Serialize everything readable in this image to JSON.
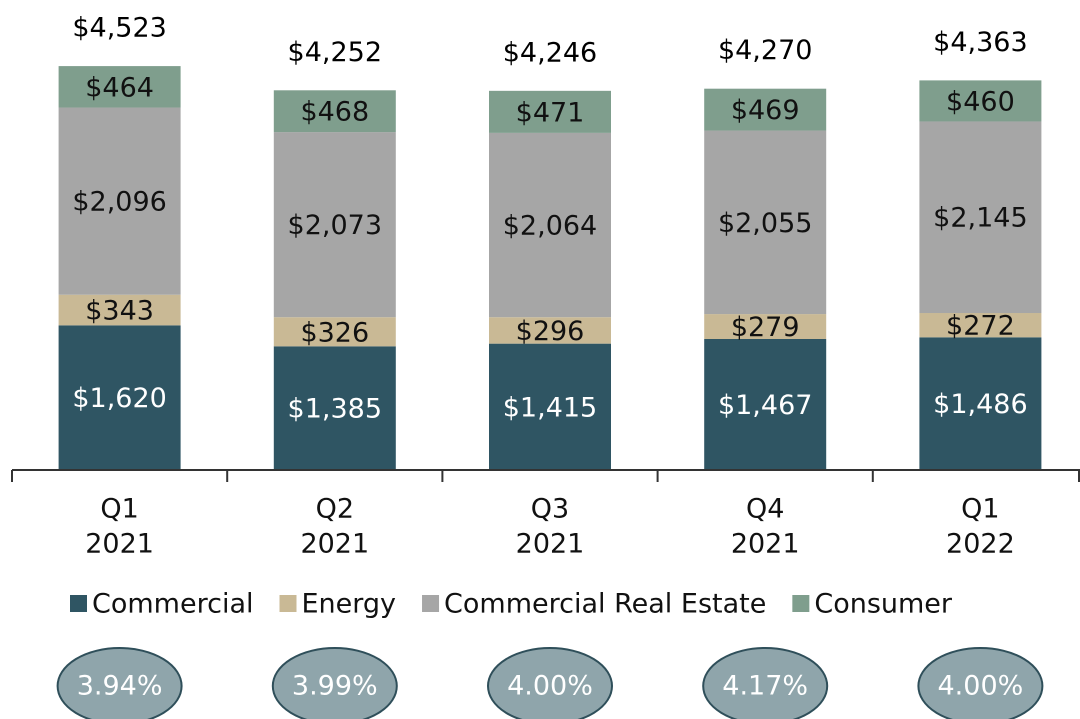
{
  "chart_data": {
    "type": "stacked-bar",
    "categories": [
      [
        "Q1",
        "2021"
      ],
      [
        "Q2",
        "2021"
      ],
      [
        "Q3",
        "2021"
      ],
      [
        "Q4",
        "2021"
      ],
      [
        "Q1",
        "2022"
      ]
    ],
    "series": [
      {
        "name": "Commercial",
        "color": "#2f5563",
        "label_color": "#ffffff",
        "values": [
          1620,
          1385,
          1415,
          1467,
          1486
        ],
        "value_labels": [
          "$1,620",
          "$1,385",
          "$1,415",
          "$1,467",
          "$1,486"
        ]
      },
      {
        "name": "Energy",
        "color": "#c9b995",
        "label_color": "#111111",
        "values": [
          343,
          326,
          296,
          279,
          272
        ],
        "value_labels": [
          "$343",
          "$326",
          "$296",
          "$279",
          "$272"
        ]
      },
      {
        "name": "Commercial Real Estate",
        "color": "#a6a6a6",
        "label_color": "#111111",
        "values": [
          2096,
          2073,
          2064,
          2055,
          2145
        ],
        "value_labels": [
          "$2,096",
          "$2,073",
          "$2,064",
          "$2,055",
          "$2,145"
        ]
      },
      {
        "name": "Consumer",
        "color": "#7f9e8d",
        "label_color": "#111111",
        "values": [
          464,
          468,
          471,
          469,
          460
        ],
        "value_labels": [
          "$464",
          "$468",
          "$471",
          "$469",
          "$460"
        ]
      }
    ],
    "totals": [
      4523,
      4252,
      4246,
      4270,
      4363
    ],
    "total_labels": [
      "$4,523",
      "$4,252",
      "$4,246",
      "$4,270",
      "$4,363"
    ],
    "rates": [
      3.94,
      3.99,
      4.0,
      4.17,
      4.0
    ],
    "rate_labels": [
      "3.94%",
      "3.99%",
      "4.00%",
      "4.17%",
      "4.00%"
    ],
    "ylim": [
      0,
      5000
    ]
  }
}
